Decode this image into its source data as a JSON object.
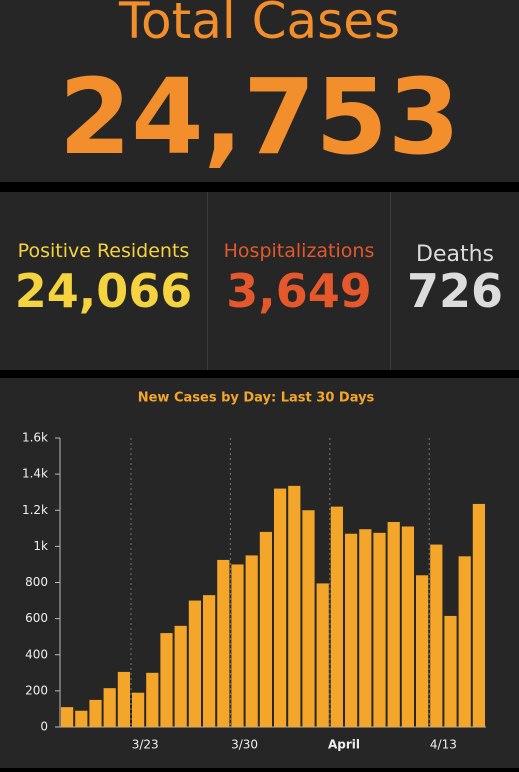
{
  "header": {
    "title": "Total Cases",
    "value": "24,753"
  },
  "stats": [
    {
      "label": "Positive Residents",
      "value": "24,066"
    },
    {
      "label": "Hospitalizations",
      "value": "3,649"
    },
    {
      "label": "Deaths",
      "value": "726"
    }
  ],
  "chart_data": {
    "type": "bar",
    "title": "New Cases by Day: Last 30 Days",
    "categories": [
      null,
      null,
      null,
      null,
      null,
      "3/23",
      null,
      null,
      null,
      null,
      null,
      null,
      "3/30",
      null,
      null,
      null,
      null,
      null,
      null,
      "April",
      null,
      null,
      null,
      null,
      null,
      null,
      "4/13",
      null,
      null,
      null
    ],
    "values": [
      110,
      90,
      150,
      215,
      305,
      190,
      300,
      520,
      560,
      700,
      730,
      925,
      900,
      950,
      1080,
      1320,
      1335,
      1200,
      795,
      1220,
      1070,
      1095,
      1075,
      1135,
      1110,
      840,
      1010,
      615,
      945,
      1235
    ],
    "color": "#f4a62a",
    "ylim": [
      0,
      1600
    ],
    "yticks": [
      0,
      200,
      400,
      600,
      800,
      {
        "value": 1000,
        "label": "1k"
      },
      {
        "value": 1200,
        "label": "1.2k"
      },
      {
        "value": 1400,
        "label": "1.4k"
      },
      {
        "value": 1600,
        "label": "1.6k"
      }
    ]
  }
}
